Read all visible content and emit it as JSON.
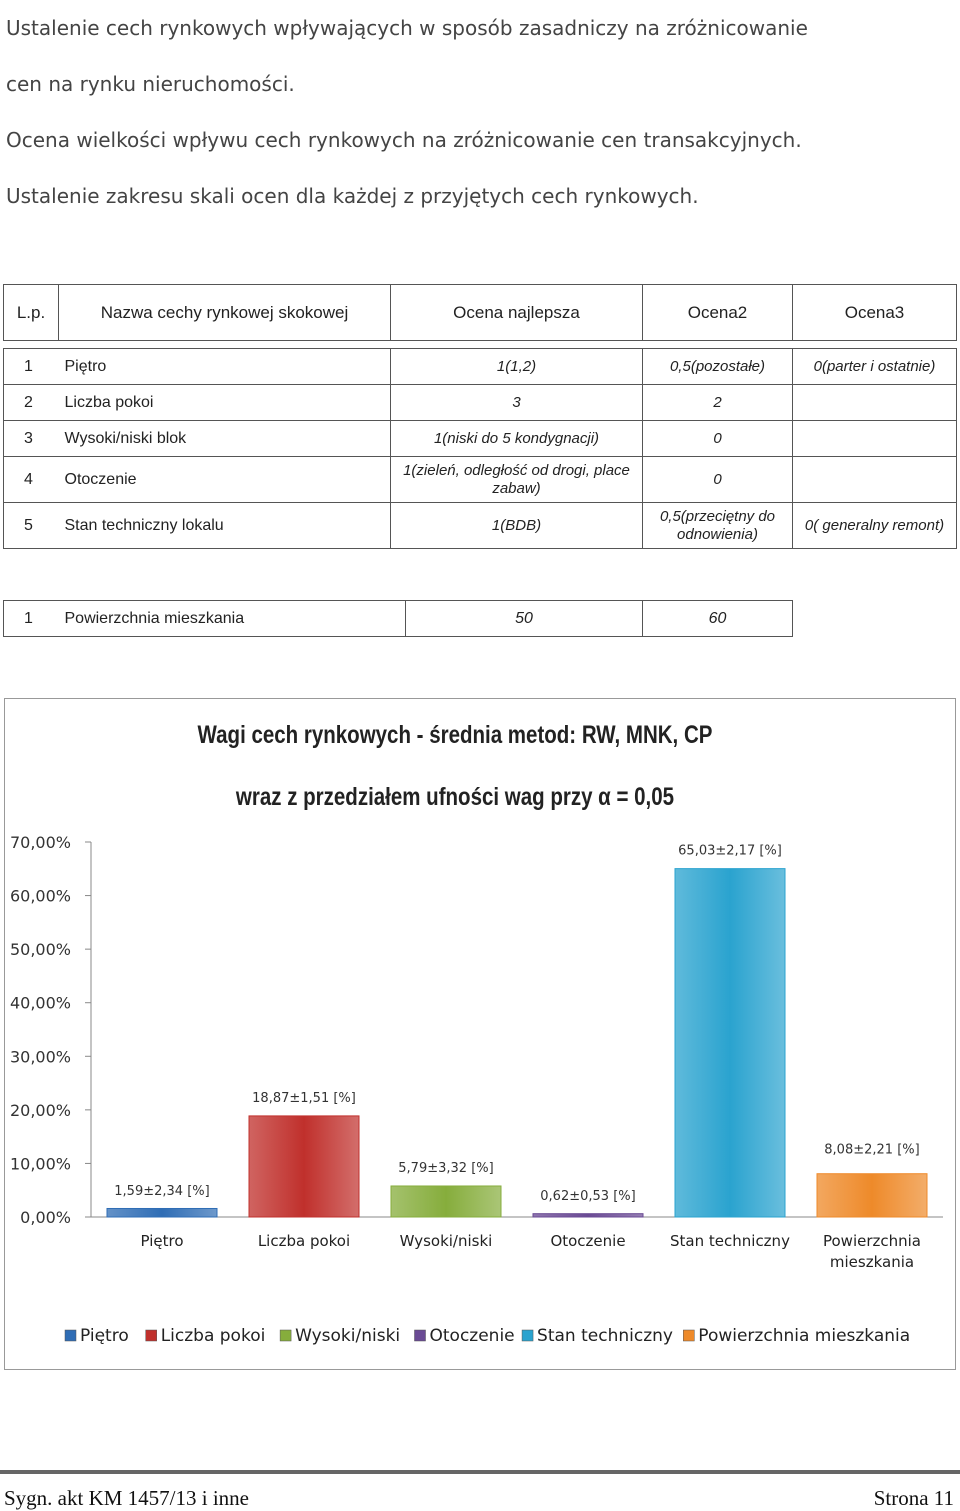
{
  "intro": {
    "lines": [
      "Ustalenie cech rynkowych wpływających w sposób zasadniczy na zróżnicowanie",
      "cen na rynku nieruchomości.",
      "Ocena wielkości wpływu cech rynkowych na zróżnicowanie cen transakcyjnych.",
      "Ustalenie zakresu skali ocen dla każdej z przyjętych cech rynkowych."
    ]
  },
  "table": {
    "headers": {
      "lp": "L.p.",
      "name": "Nazwa cechy rynkowej skokowej",
      "best": "Ocena najlepsza",
      "o2": "Ocena2",
      "o3": "Ocena3"
    },
    "rows": [
      {
        "nr": "1",
        "name": "Piętro",
        "best": "1(1,2)",
        "o2": "0,5(pozostałe)",
        "o3": "0(parter i ostatnie)"
      },
      {
        "nr": "2",
        "name": "Liczba pokoi",
        "best": "3",
        "o2": "2",
        "o3": ""
      },
      {
        "nr": "3",
        "name": "Wysoki/niski blok",
        "best": "1(niski do 5 kondygnacji)",
        "o2": "0",
        "o3": ""
      },
      {
        "nr": "4",
        "name": "Otoczenie",
        "best": "1(zieleń, odległość od drogi, place zabaw)",
        "o2": "0",
        "o3": ""
      },
      {
        "nr": "5",
        "name": "Stan techniczny lokalu",
        "best": "1(BDB)",
        "o2": "0,5(przeciętny do odnowienia)",
        "o3": "0( generalny remont)"
      }
    ]
  },
  "table2": {
    "row": {
      "nr": "1",
      "name": "Powierzchnia mieszkania",
      "best": "50",
      "o2": "60"
    }
  },
  "chart_data": {
    "type": "bar",
    "title": "Wagi cech rynkowych - średnia metod:  RW, MNK, CP",
    "subtitle": "wraz z przedziałem ufności wag  przy α = 0,05",
    "categories": [
      "Piętro",
      "Liczba pokoi",
      "Wysoki/niski",
      "Otoczenie",
      "Stan techniczny",
      "Powierzchnia mieszkania"
    ],
    "values": [
      1.59,
      18.87,
      5.79,
      0.62,
      65.03,
      8.08
    ],
    "data_labels": [
      "1,59±2,34 [%]",
      "18,87±1,51 [%]",
      "5,79±3,32 [%]",
      "0,62±0,53 [%]",
      "65,03±2,17 [%]",
      "8,08±2,21 [%]"
    ],
    "colors": [
      "#2f6db5",
      "#c0302c",
      "#86ad3c",
      "#6a4a94",
      "#2aa3cf",
      "#ee8a2a"
    ],
    "ylim": [
      0,
      70
    ],
    "yticks": [
      "0,00%",
      "10,00%",
      "20,00%",
      "30,00%",
      "40,00%",
      "50,00%",
      "60,00%",
      "70,00%"
    ],
    "grid": false,
    "legend": "bottom",
    "legend_entries": [
      "Piętro",
      "Liczba pokoi",
      "Wysoki/niski",
      "Otoczenie",
      "Stan techniczny",
      "Powierzchnia mieszkania"
    ]
  },
  "footer": {
    "left": "Sygn. akt KM 1457/13 i inne",
    "right": "Strona 11"
  }
}
